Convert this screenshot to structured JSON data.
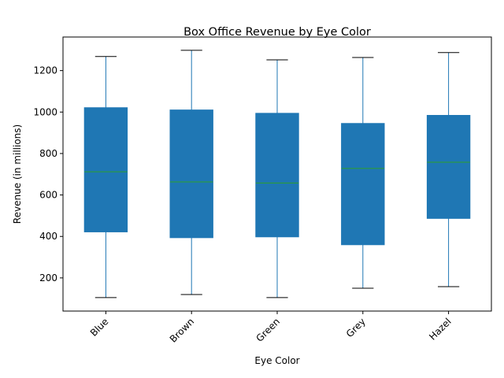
{
  "chart_data": {
    "type": "box",
    "title": "Box Office Revenue by Eye Color",
    "xlabel": "Eye Color",
    "ylabel": "Revenue (in millions)",
    "ylim": [
      40,
      1362
    ],
    "yticks": [
      200,
      400,
      600,
      800,
      1000,
      1200
    ],
    "grid": false,
    "box_color": "#1f77b4",
    "median_color": "#2ca02c",
    "whisker_color": "#1f77b4",
    "cap_color": "#000000",
    "categories": [
      "Blue",
      "Brown",
      "Green",
      "Grey",
      "Hazel"
    ],
    "boxes": [
      {
        "min": 105,
        "q1": 422,
        "median": 712,
        "q3": 1021,
        "max": 1268
      },
      {
        "min": 120,
        "q1": 394,
        "median": 663,
        "q3": 1010,
        "max": 1298
      },
      {
        "min": 105,
        "q1": 398,
        "median": 658,
        "q3": 994,
        "max": 1252
      },
      {
        "min": 150,
        "q1": 360,
        "median": 728,
        "q3": 945,
        "max": 1263
      },
      {
        "min": 158,
        "q1": 487,
        "median": 758,
        "q3": 984,
        "max": 1287
      }
    ]
  }
}
